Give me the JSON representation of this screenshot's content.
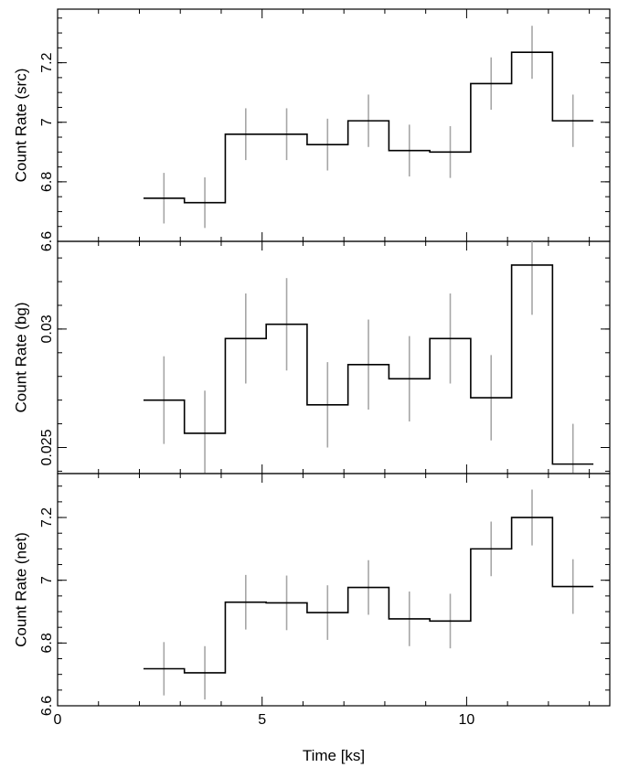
{
  "chart_data": [
    {
      "type": "line",
      "name": "src",
      "ylabel": "Count Rate (src)",
      "xlabel": "",
      "xlim": [
        0,
        13.5
      ],
      "ylim": [
        6.6,
        7.38
      ],
      "x_ticks": [
        0,
        5,
        10
      ],
      "y_ticks": [
        6.6,
        6.8,
        7,
        7.2
      ],
      "y_tick_labels": [
        "6.6",
        "6.8",
        "7",
        "7.2"
      ],
      "bin_edges": [
        2.1,
        3.1,
        4.1,
        5.1,
        6.1,
        7.1,
        8.1,
        9.1,
        10.1,
        11.1,
        12.1,
        13.1
      ],
      "x": [
        2.6,
        3.6,
        4.6,
        5.6,
        6.6,
        7.6,
        8.6,
        9.6,
        10.6,
        11.6,
        12.6
      ],
      "values": [
        6.745,
        6.73,
        6.96,
        6.96,
        6.925,
        7.005,
        6.905,
        6.9,
        7.13,
        7.235,
        7.005
      ],
      "errors": [
        0.085,
        0.085,
        0.087,
        0.087,
        0.087,
        0.088,
        0.087,
        0.087,
        0.088,
        0.089,
        0.088
      ]
    },
    {
      "type": "line",
      "name": "bg",
      "ylabel": "Count Rate (bg)",
      "xlabel": "",
      "xlim": [
        0,
        13.5
      ],
      "ylim": [
        0.0239,
        0.0337
      ],
      "x_ticks": [
        0,
        5,
        10
      ],
      "y_ticks": [
        0.025,
        0.03
      ],
      "y_tick_labels": [
        "0.025",
        "0.03"
      ],
      "bin_edges": [
        2.1,
        3.1,
        4.1,
        5.1,
        6.1,
        7.1,
        8.1,
        9.1,
        10.1,
        11.1,
        12.1,
        13.1
      ],
      "x": [
        2.6,
        3.6,
        4.6,
        5.6,
        6.6,
        7.6,
        8.6,
        9.6,
        10.6,
        11.6,
        12.6
      ],
      "values": [
        0.027,
        0.0256,
        0.0296,
        0.0302,
        0.0268,
        0.0285,
        0.0279,
        0.0296,
        0.0271,
        0.0327,
        0.0243
      ],
      "errors": [
        0.00185,
        0.0018,
        0.0019,
        0.00195,
        0.0018,
        0.0019,
        0.0018,
        0.0019,
        0.0018,
        0.0021,
        0.0017
      ]
    },
    {
      "type": "line",
      "name": "net",
      "ylabel": "Count Rate (net)",
      "xlabel": "Time [ks]",
      "xlim": [
        0,
        13.5
      ],
      "ylim": [
        6.6,
        7.34
      ],
      "x_ticks": [
        0,
        5,
        10
      ],
      "x_tick_labels": [
        "0",
        "5",
        "10"
      ],
      "y_ticks": [
        6.6,
        6.8,
        7,
        7.2
      ],
      "y_tick_labels": [
        "6.6",
        "6.8",
        "7",
        "7.2"
      ],
      "bin_edges": [
        2.1,
        3.1,
        4.1,
        5.1,
        6.1,
        7.1,
        8.1,
        9.1,
        10.1,
        11.1,
        12.1,
        13.1
      ],
      "x": [
        2.6,
        3.6,
        4.6,
        5.6,
        6.6,
        7.6,
        8.6,
        9.6,
        10.6,
        11.6,
        12.6
      ],
      "values": [
        6.718,
        6.705,
        6.93,
        6.928,
        6.897,
        6.977,
        6.877,
        6.87,
        7.1,
        7.2,
        6.98
      ],
      "errors": [
        0.085,
        0.085,
        0.087,
        0.087,
        0.087,
        0.087,
        0.087,
        0.087,
        0.087,
        0.089,
        0.087
      ]
    }
  ]
}
